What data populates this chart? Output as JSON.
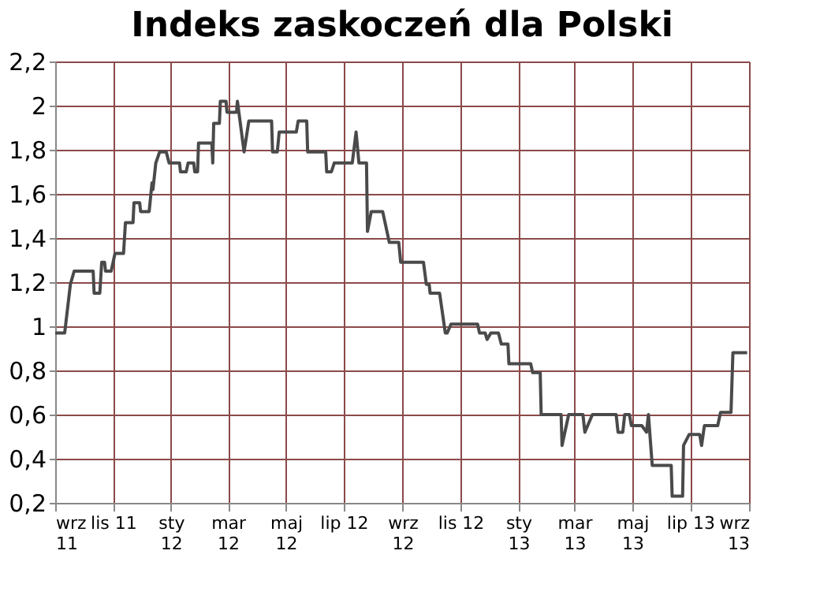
{
  "chart_data": {
    "type": "line",
    "title": "Indeks zaskoczeń dla Polski",
    "x": [
      "2011-09-01",
      "2011-09-11",
      "2011-09-17",
      "2011-09-21",
      "2011-10-11",
      "2011-10-12",
      "2011-10-18",
      "2011-10-20",
      "2011-10-23",
      "2011-10-24",
      "2011-10-30",
      "2011-11-03",
      "2011-11-12",
      "2011-11-14",
      "2011-11-22",
      "2011-11-23",
      "2011-11-29",
      "2011-11-30",
      "2011-12-09",
      "2011-12-12",
      "2011-12-13",
      "2011-12-16",
      "2011-12-20",
      "2011-12-27",
      "2011-12-30",
      "2012-01-10",
      "2012-01-11",
      "2012-01-17",
      "2012-01-19",
      "2012-01-25",
      "2012-01-26",
      "2012-01-29",
      "2012-01-30",
      "2012-02-13",
      "2012-02-14",
      "2012-02-15",
      "2012-02-21",
      "2012-02-22",
      "2012-02-28",
      "2012-02-29",
      "2012-03-10",
      "2012-03-11",
      "2012-03-18",
      "2012-03-23",
      "2012-04-16",
      "2012-04-17",
      "2012-04-22",
      "2012-04-24",
      "2012-05-12",
      "2012-05-14",
      "2012-05-23",
      "2012-05-24",
      "2012-06-12",
      "2012-06-13",
      "2012-06-18",
      "2012-06-21",
      "2012-07-10",
      "2012-07-14",
      "2012-07-17",
      "2012-07-25",
      "2012-07-26",
      "2012-07-30",
      "2012-08-11",
      "2012-08-14",
      "2012-08-18",
      "2012-08-28",
      "2012-08-30",
      "2012-09-23",
      "2012-09-26",
      "2012-09-29",
      "2012-09-30",
      "2012-10-10",
      "2012-10-16",
      "2012-10-18",
      "2012-10-22",
      "2012-11-19",
      "2012-11-21",
      "2012-11-27",
      "2012-11-29",
      "2012-12-03",
      "2012-12-11",
      "2012-12-14",
      "2012-12-21",
      "2012-12-22",
      "2013-01-14",
      "2013-01-16",
      "2013-01-24",
      "2013-01-25",
      "2013-02-15",
      "2013-02-16",
      "2013-02-23",
      "2013-03-10",
      "2013-03-12",
      "2013-03-20",
      "2013-04-14",
      "2013-04-16",
      "2013-04-21",
      "2013-04-23",
      "2013-04-28",
      "2013-04-30",
      "2013-05-11",
      "2013-05-16",
      "2013-05-18",
      "2013-05-22",
      "2013-06-11",
      "2013-06-12",
      "2013-06-23",
      "2013-06-24",
      "2013-06-30",
      "2013-07-11",
      "2013-07-13",
      "2013-07-16",
      "2013-07-30",
      "2013-08-02",
      "2013-08-13",
      "2013-08-15",
      "2013-08-30"
    ],
    "series": [
      {
        "color": "#4a4a4a",
        "values": [
          0.97,
          0.97,
          1.19,
          1.25,
          1.25,
          1.15,
          1.15,
          1.29,
          1.29,
          1.25,
          1.25,
          1.33,
          1.33,
          1.47,
          1.47,
          1.56,
          1.56,
          1.52,
          1.52,
          1.65,
          1.62,
          1.74,
          1.79,
          1.79,
          1.74,
          1.74,
          1.7,
          1.7,
          1.74,
          1.74,
          1.7,
          1.7,
          1.83,
          1.83,
          1.74,
          1.92,
          1.92,
          2.02,
          2.02,
          1.97,
          1.97,
          2.02,
          1.79,
          1.93,
          1.93,
          1.79,
          1.79,
          1.88,
          1.88,
          1.93,
          1.93,
          1.79,
          1.79,
          1.7,
          1.7,
          1.74,
          1.74,
          1.88,
          1.74,
          1.74,
          1.43,
          1.52,
          1.52,
          1.46,
          1.38,
          1.38,
          1.29,
          1.29,
          1.19,
          1.19,
          1.15,
          1.15,
          0.97,
          0.97,
          1.01,
          1.01,
          0.97,
          0.97,
          0.94,
          0.97,
          0.97,
          0.92,
          0.92,
          0.83,
          0.83,
          0.79,
          0.79,
          0.6,
          0.6,
          0.46,
          0.6,
          0.6,
          0.52,
          0.6,
          0.6,
          0.52,
          0.52,
          0.6,
          0.6,
          0.55,
          0.55,
          0.52,
          0.6,
          0.37,
          0.37,
          0.23,
          0.23,
          0.46,
          0.51,
          0.51,
          0.46,
          0.55,
          0.55,
          0.61,
          0.61,
          0.88,
          0.88
        ]
      }
    ],
    "xlim": [
      "2011-09-01",
      "2013-09-01"
    ],
    "xticks": [
      {
        "value": "2011-09-01",
        "label": "wrz\n11"
      },
      {
        "value": "2011-11-01",
        "label": "lis 11"
      },
      {
        "value": "2012-01-01",
        "label": "sty\n12"
      },
      {
        "value": "2012-03-01",
        "label": "mar\n12"
      },
      {
        "value": "2012-05-01",
        "label": "maj\n12"
      },
      {
        "value": "2012-07-01",
        "label": "lip 12"
      },
      {
        "value": "2012-09-01",
        "label": "wrz\n12"
      },
      {
        "value": "2012-11-01",
        "label": "lis 12"
      },
      {
        "value": "2013-01-01",
        "label": "sty\n13"
      },
      {
        "value": "2013-03-01",
        "label": "mar\n13"
      },
      {
        "value": "2013-05-01",
        "label": "maj\n13"
      },
      {
        "value": "2013-07-01",
        "label": "lip 13"
      },
      {
        "value": "2013-09-01",
        "label": "wrz\n13"
      }
    ],
    "ylim": [
      0.2,
      2.2
    ],
    "yticks": [
      {
        "value": 0.2,
        "label": "0,2"
      },
      {
        "value": 0.4,
        "label": "0,4"
      },
      {
        "value": 0.6,
        "label": "0,6"
      },
      {
        "value": 0.8,
        "label": "0,8"
      },
      1,
      {
        "value": 1.2,
        "label": "1,2"
      },
      {
        "value": 1.4,
        "label": "1,4"
      },
      {
        "value": 1.6,
        "label": "1,6"
      },
      {
        "value": 1.8,
        "label": "1,8"
      },
      2,
      {
        "value": 2.2,
        "label": "2,2"
      }
    ],
    "grid": true,
    "marker": "none",
    "line_style": "solid"
  }
}
